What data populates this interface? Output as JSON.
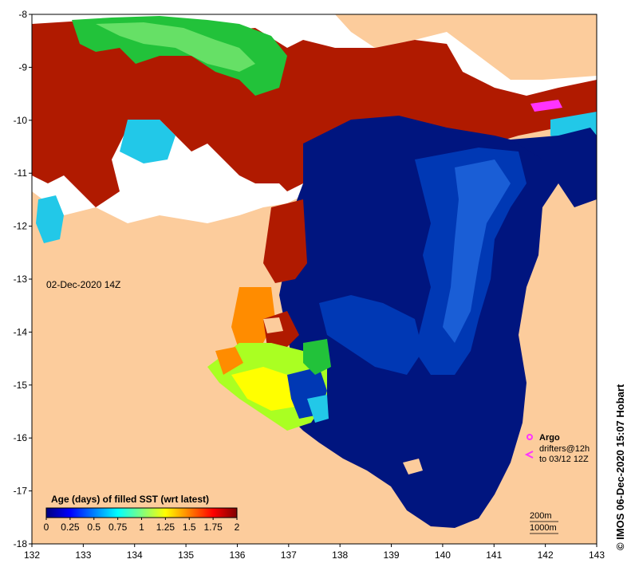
{
  "map": {
    "timestamp": "02-Dec-2020 14Z",
    "colorbar": {
      "title": "Age (days) of filled SST (wrt latest)",
      "ticks": [
        "0",
        "0.25",
        "0.5",
        "0.75",
        "1",
        "1.25",
        "1.5",
        "1.75",
        "2"
      ],
      "colors": [
        "#00007f",
        "#0000ff",
        "#007fff",
        "#00ffff",
        "#7fff7f",
        "#ffff00",
        "#ff7f00",
        "#ff0000",
        "#7f0000"
      ]
    },
    "x_ticks": [
      "132",
      "133",
      "134",
      "135",
      "136",
      "137",
      "138",
      "139",
      "140",
      "141",
      "142",
      "143"
    ],
    "y_ticks": [
      "-8",
      "-9",
      "-10",
      "-11",
      "-12",
      "-13",
      "-14",
      "-15",
      "-16",
      "-17",
      "-18"
    ],
    "legend": {
      "argo": "Argo",
      "drifters_line1": "drifters@12h",
      "drifters_line2": "to 03/12 12Z",
      "argo_color": "#ff33ff",
      "drifter_color": "#ff33ff"
    },
    "depth_labels": [
      "200m",
      "1000m"
    ],
    "credit": "© IMOS 06-Dec-2020 15:07 Hobart",
    "colors": {
      "land": "#fccc9c",
      "ocean_deep": "#00157f",
      "ocean_mid": "#0038b4",
      "ocean_light": "#1a5ed6",
      "nodata": "#ffffff",
      "old": "#b01a00"
    }
  }
}
